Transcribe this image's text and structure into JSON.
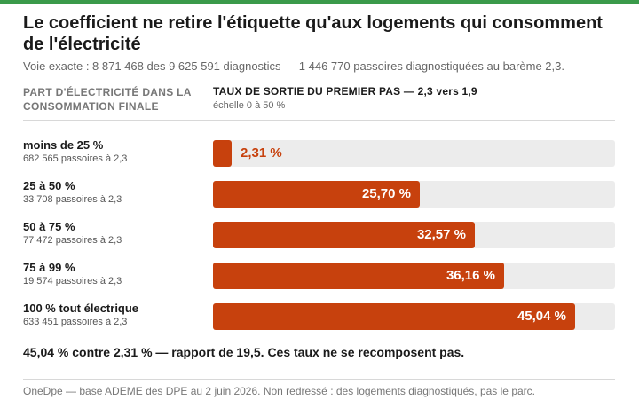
{
  "header": {
    "title": "Le coefficient ne retire l'étiquette qu'aux logements qui consomment de l'électricité",
    "subtitle": "Voie exacte : 8 871 468 des 9 625 591 diagnostics — 1 446 770 passoires diagnostiquées au barème 2,3."
  },
  "columns": {
    "left": "PART D'ÉLECTRICITÉ DANS LA CONSOMMATION FINALE",
    "right": "TAUX DE SORTIE DU PREMIER PAS — 2,3 vers 1,9",
    "right_note": "échelle 0 à 50 %"
  },
  "chart_data": {
    "type": "bar",
    "orientation": "horizontal",
    "categories": [
      "moins de 25 %",
      "25 à 50 %",
      "50 à 75 %",
      "75 à 99 %",
      "100 % tout électrique"
    ],
    "category_notes": [
      "682 565 passoires à 2,3",
      "33 708 passoires à 2,3",
      "77 472 passoires à 2,3",
      "19 574 passoires à 2,3",
      "633 451 passoires à 2,3"
    ],
    "values": [
      2.31,
      25.7,
      32.57,
      36.16,
      45.04
    ],
    "value_labels": [
      "2,31 %",
      "25,70 %",
      "32,57 %",
      "36,16 %",
      "45,04 %"
    ],
    "xlim": [
      0,
      50
    ],
    "bar_color": "#c7410d",
    "track_color": "#ececec",
    "legend": "none"
  },
  "conclusion": "45,04 % contre 2,31 % — rapport de 19,5. Ces taux ne se recomposent pas.",
  "footer": "OneDpe — base ADEME des DPE au 2 juin 2026. Non redressé : des logements diagnostiqués, pas le parc.",
  "colors": {
    "accent_bar": "#3a9a4a",
    "bar": "#c7410d"
  }
}
